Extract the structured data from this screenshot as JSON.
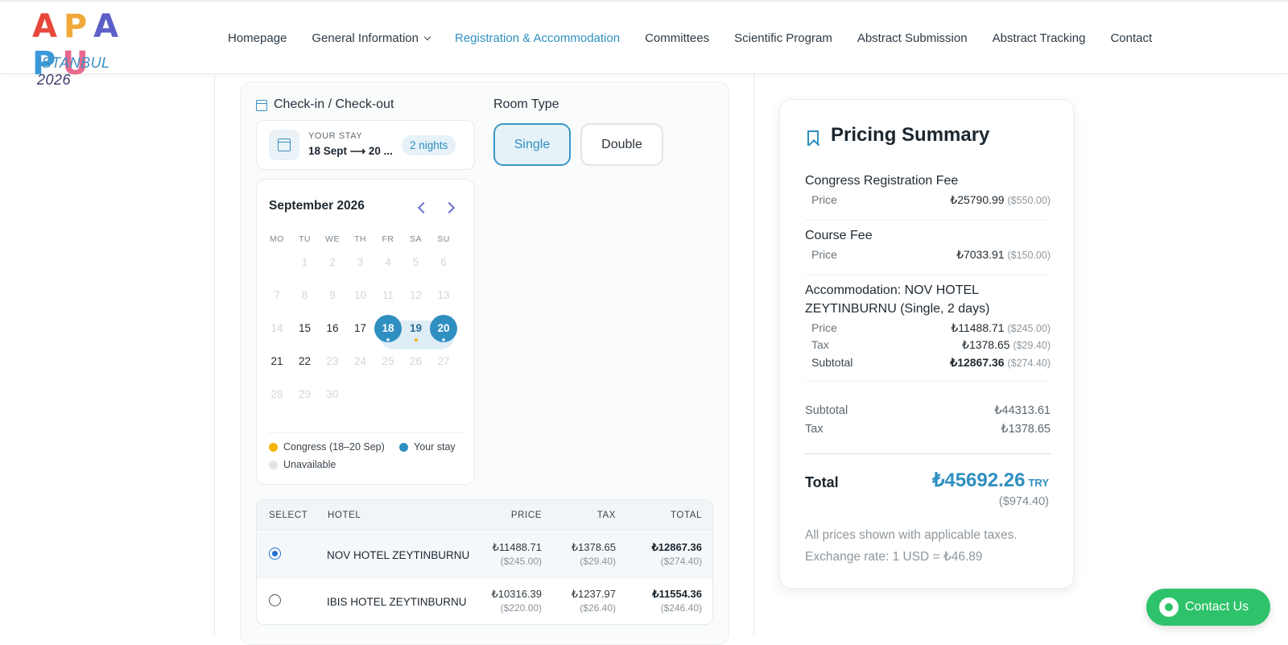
{
  "logo": {
    "letters": [
      {
        "ch": "A",
        "color": "#e8473c"
      },
      {
        "ch": "P",
        "color": "#f2a93b"
      },
      {
        "ch": "A",
        "color": "#5b5fc7"
      },
      {
        "ch": "P",
        "color": "#3a9ad9"
      },
      {
        "ch": "U",
        "color": "#e96a8d"
      }
    ],
    "city": "ISTANBUL",
    "year": "2026"
  },
  "nav": [
    {
      "label": "Homepage"
    },
    {
      "label": "General Information",
      "dropdown": true
    },
    {
      "label": "Registration & Accommodation",
      "active": true
    },
    {
      "label": "Committees"
    },
    {
      "label": "Scientific Program"
    },
    {
      "label": "Abstract Submission"
    },
    {
      "label": "Abstract Tracking"
    },
    {
      "label": "Contact"
    }
  ],
  "checkin": {
    "section_label": "Check-in / Check-out",
    "kicker": "YOUR STAY",
    "dates": "18 Sept ⟶ 20 ...",
    "nights": "2 nights"
  },
  "room": {
    "section_label": "Room Type",
    "options": [
      "Single",
      "Double"
    ],
    "selected": "Single"
  },
  "calendar": {
    "month": "September 2026",
    "weekdays": [
      "MO",
      "TU",
      "WE",
      "TH",
      "FR",
      "SA",
      "SU"
    ],
    "first_weekday_index": 1,
    "days_in_month": 30,
    "available_days": [
      15,
      16,
      17,
      18,
      19,
      20,
      21,
      22
    ],
    "selected_start": 18,
    "selected_end": 20,
    "congress_days": [
      19
    ],
    "stay_days": [
      18,
      20
    ],
    "legend": {
      "congress": "Congress (18–20 Sep)",
      "stay": "Your stay",
      "unavailable": "Unavailable"
    },
    "colors": {
      "congress": "#f5b50a",
      "stay": "#2f8fc0",
      "unavailable": "#e2e5e8"
    }
  },
  "hotels": {
    "headers": {
      "select": "SELECT",
      "hotel": "HOTEL",
      "price": "PRICE",
      "tax": "TAX",
      "total": "TOTAL"
    },
    "rows": [
      {
        "name": "NOV HOTEL ZEYTINBURNU",
        "price": "₺11488.71",
        "price_usd": "($245.00)",
        "tax": "₺1378.65",
        "tax_usd": "($29.40)",
        "total": "₺12867.36",
        "total_usd": "($274.40)",
        "selected": true
      },
      {
        "name": "IBIS HOTEL ZEYTINBURNU",
        "price": "₺10316.39",
        "price_usd": "($220.00)",
        "tax": "₺1237.97",
        "tax_usd": "($26.40)",
        "total": "₺11554.36",
        "total_usd": "($246.40)",
        "selected": false
      }
    ]
  },
  "summary": {
    "title": "Pricing Summary",
    "registration": {
      "label": "Congress Registration Fee",
      "price_label": "Price",
      "price": "₺25790.99",
      "price_usd": "($550.00)"
    },
    "course": {
      "label": "Course Fee",
      "price_label": "Price",
      "price": "₺7033.91",
      "price_usd": "($150.00)"
    },
    "accommodation": {
      "label": "Accommodation: NOV HOTEL ZEYTINBURNU (Single, 2 days)",
      "price_label": "Price",
      "price": "₺11488.71",
      "price_usd": "($245.00)",
      "tax_label": "Tax",
      "tax": "₺1378.65",
      "tax_usd": "($29.40)",
      "subtotal_label": "Subtotal",
      "subtotal": "₺12867.36",
      "subtotal_usd": "($274.40)"
    },
    "subtotal_label": "Subtotal",
    "subtotal": "₺44313.61",
    "tax_label": "Tax",
    "tax": "₺1378.65",
    "total_label": "Total",
    "total": "₺45692.26",
    "total_currency": "TRY",
    "total_usd": "($974.40)",
    "note_taxes": "All prices shown with applicable taxes.",
    "note_rate": "Exchange rate: 1 USD = ₺46.89"
  },
  "contact_button": {
    "label": "Contact Us",
    "icon": "whatsapp-icon"
  }
}
